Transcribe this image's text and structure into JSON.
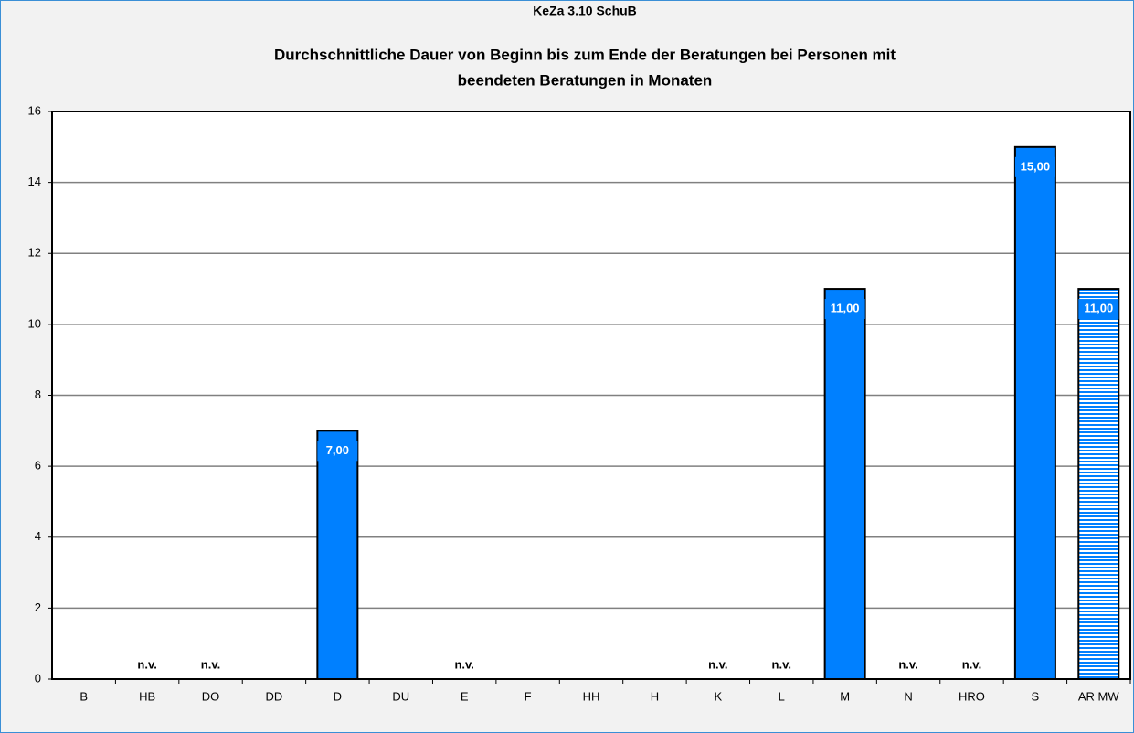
{
  "chart_data": {
    "type": "bar",
    "title": "KeZa 3.10 SchuB",
    "subtitle": [
      "Durchschnittliche Dauer von Beginn bis zum Ende der Beratungen bei Personen mit",
      "beendeten Beratungen in Monaten"
    ],
    "categories": [
      "B",
      "HB",
      "DO",
      "DD",
      "D",
      "DU",
      "E",
      "F",
      "HH",
      "H",
      "K",
      "L",
      "M",
      "N",
      "HRO",
      "S",
      "AR MW"
    ],
    "values": [
      null,
      null,
      null,
      null,
      7,
      null,
      null,
      null,
      null,
      null,
      null,
      null,
      11,
      null,
      null,
      15,
      11
    ],
    "value_labels": [
      null,
      "n.v.",
      "n.v.",
      null,
      "7,00",
      null,
      "n.v.",
      null,
      null,
      null,
      "n.v.",
      "n.v.",
      "11,00",
      "n.v.",
      "n.v.",
      "15,00",
      "11,00"
    ],
    "color": "#0080ff",
    "hatched": "AR MW",
    "ylim": [
      0,
      16
    ],
    "yticks": [
      0,
      2,
      4,
      6,
      8,
      10,
      12,
      14,
      16
    ],
    "grid": true
  }
}
